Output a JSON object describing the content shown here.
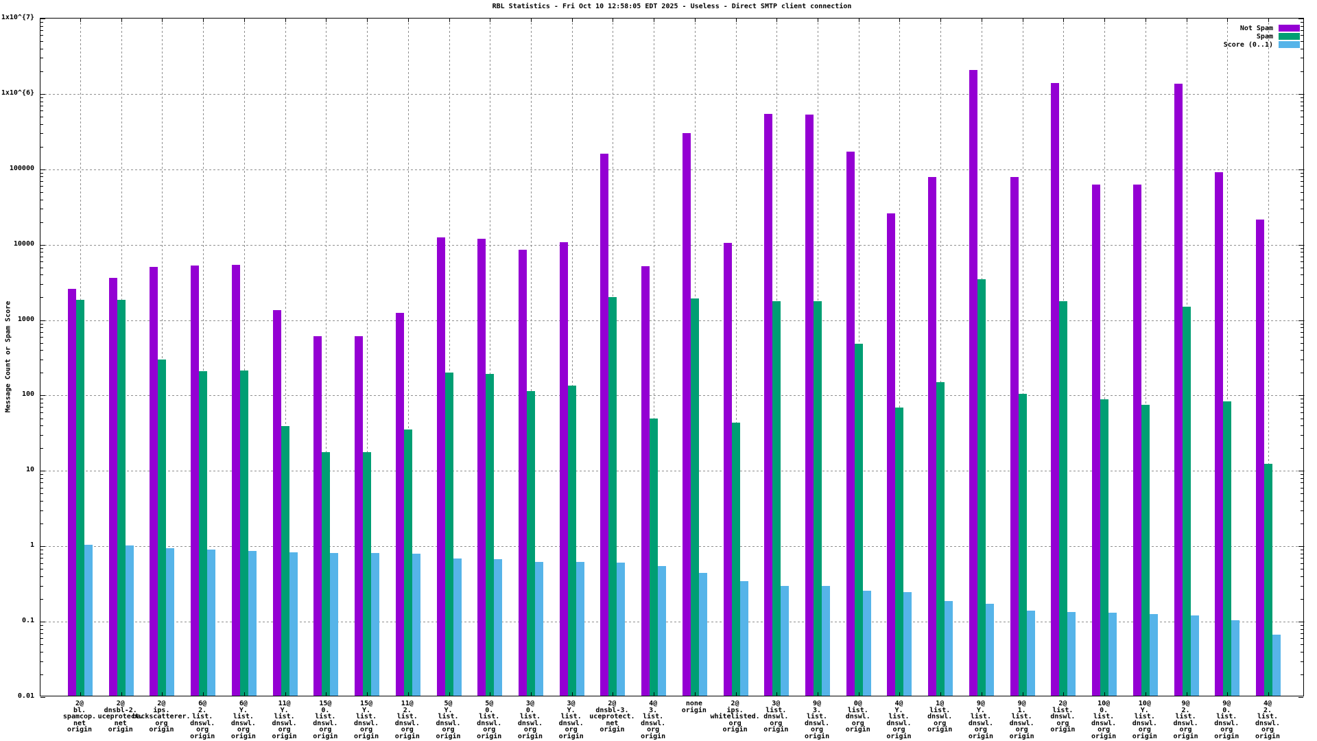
{
  "title": "RBL Statistics - Fri Oct 10 12:58:05 EDT 2025 - Useless - Direct SMTP client connection",
  "colors": {
    "not_spam": "#9400D3",
    "spam": "#009E73",
    "score": "#56B4E9",
    "grid": "#8e8e8e",
    "axis": "#000000"
  },
  "chart_data": {
    "type": "bar",
    "title": "RBL Statistics - Fri Oct 10 12:58:05 EDT 2025 - Useless - Direct SMTP client connection",
    "xlabel": "",
    "ylabel": "Message Count or Spam Score",
    "y_scale": "log10",
    "ylim": [
      0.01,
      10000000
    ],
    "grid": true,
    "legend_position": "top-right-inside",
    "y_tick_labels": [
      "0.01",
      "0.1",
      "1",
      "10",
      "100",
      "1000",
      "10000",
      "100000",
      "1x10^{6}",
      "1x10^{7}"
    ],
    "categories": [
      [
        "2@",
        "bl.",
        "spamcop.",
        "net",
        "origin"
      ],
      [
        "2@",
        "dnsbl-2.",
        "uceprotect.",
        "net",
        "origin"
      ],
      [
        "2@",
        "ips.",
        "backscatterer.",
        "org",
        "origin"
      ],
      [
        "6@",
        "2.",
        "list.",
        "dnswl.",
        "org",
        "origin"
      ],
      [
        "6@",
        "Y.",
        "list.",
        "dnswl.",
        "org",
        "origin"
      ],
      [
        "11@",
        "Y.",
        "list.",
        "dnswl.",
        "org",
        "origin"
      ],
      [
        "15@",
        "0.",
        "list.",
        "dnswl.",
        "org",
        "origin"
      ],
      [
        "15@",
        "Y.",
        "list.",
        "dnswl.",
        "org",
        "origin"
      ],
      [
        "11@",
        "2.",
        "list.",
        "dnswl.",
        "org",
        "origin"
      ],
      [
        "5@",
        "Y.",
        "list.",
        "dnswl.",
        "org",
        "origin"
      ],
      [
        "5@",
        "0.",
        "list.",
        "dnswl.",
        "org",
        "origin"
      ],
      [
        "3@",
        "0.",
        "list.",
        "dnswl.",
        "org",
        "origin"
      ],
      [
        "3@",
        "Y.",
        "list.",
        "dnswl.",
        "org",
        "origin"
      ],
      [
        "2@",
        "dnsbl-3.",
        "uceprotect.",
        "net",
        "origin"
      ],
      [
        "4@",
        "3.",
        "list.",
        "dnswl.",
        "org",
        "origin"
      ],
      [
        "none",
        "origin"
      ],
      [
        "2@",
        "ips.",
        "whitelisted.",
        "org",
        "origin"
      ],
      [
        "3@",
        "list.",
        "dnswl.",
        "org",
        "origin"
      ],
      [
        "9@",
        "3.",
        "list.",
        "dnswl.",
        "org",
        "origin"
      ],
      [
        "0@",
        "list.",
        "dnswl.",
        "org",
        "origin"
      ],
      [
        "4@",
        "Y.",
        "list.",
        "dnswl.",
        "org",
        "origin"
      ],
      [
        "1@",
        "list.",
        "dnswl.",
        "org",
        "origin"
      ],
      [
        "9@",
        "Y.",
        "list.",
        "dnswl.",
        "org",
        "origin"
      ],
      [
        "9@",
        "1.",
        "list.",
        "dnswl.",
        "org",
        "origin"
      ],
      [
        "2@",
        "list.",
        "dnswl.",
        "org",
        "origin"
      ],
      [
        "10@",
        "0.",
        "list.",
        "dnswl.",
        "org",
        "origin"
      ],
      [
        "10@",
        "Y.",
        "list.",
        "dnswl.",
        "org",
        "origin"
      ],
      [
        "9@",
        "2.",
        "list.",
        "dnswl.",
        "org",
        "origin"
      ],
      [
        "9@",
        "0.",
        "list.",
        "dnswl.",
        "org",
        "origin"
      ],
      [
        "4@",
        "2.",
        "list.",
        "dnswl.",
        "org",
        "origin"
      ]
    ],
    "series": [
      {
        "name": "Not Spam",
        "color": "#9400D3",
        "values": [
          2500,
          3500,
          4900,
          5100,
          5200,
          1300,
          590,
          590,
          1200,
          12000,
          11500,
          8200,
          10300,
          155000,
          5000,
          290000,
          10200,
          520000,
          510000,
          165000,
          25000,
          76000,
          2000000,
          76000,
          1340000,
          60000,
          60000,
          1300000,
          88000,
          20500
        ]
      },
      {
        "name": "Spam",
        "color": "#009E73",
        "values": [
          1800,
          1800,
          290,
          200,
          205,
          38,
          17,
          17,
          34,
          195,
          186,
          110,
          130,
          1950,
          47,
          1870,
          42,
          1700,
          1700,
          470,
          67,
          145,
          3350,
          100,
          1720,
          85,
          72,
          1460,
          81,
          12
        ]
      },
      {
        "name": "Score (0..1)",
        "color": "#56B4E9",
        "values": [
          1.0,
          0.99,
          0.9,
          0.86,
          0.84,
          0.8,
          0.78,
          0.78,
          0.76,
          0.66,
          0.65,
          0.6,
          0.6,
          0.58,
          0.52,
          0.43,
          0.33,
          0.285,
          0.285,
          0.245,
          0.235,
          0.18,
          0.165,
          0.135,
          0.13,
          0.125,
          0.12,
          0.115,
          0.1,
          0.065
        ]
      }
    ]
  }
}
